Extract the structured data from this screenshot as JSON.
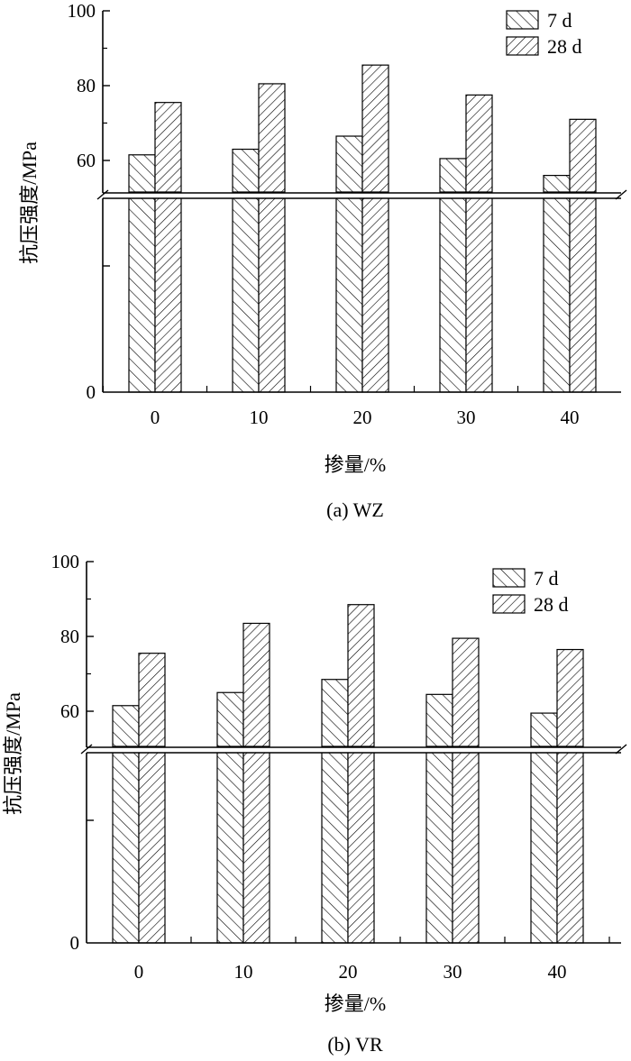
{
  "chart_data": [
    {
      "type": "bar",
      "caption": "(a) WZ",
      "categories": [
        "0",
        "10",
        "20",
        "30",
        "40"
      ],
      "series": [
        {
          "name": "7 d",
          "values": [
            61.5,
            63,
            66.5,
            60.5,
            56
          ]
        },
        {
          "name": "28 d",
          "values": [
            75.5,
            80.5,
            85.5,
            77.5,
            71
          ]
        }
      ],
      "xlabel": "掺量/%",
      "ylabel": "抗压强度/MPa",
      "ylim": [
        0,
        100
      ],
      "axis_break": true,
      "yticks_lower": [
        "0"
      ],
      "yticks_upper": [
        "60",
        "80",
        "100"
      ],
      "legend_position": "top-right",
      "grid": false
    },
    {
      "type": "bar",
      "caption": "(b) VR",
      "categories": [
        "0",
        "10",
        "20",
        "30",
        "40"
      ],
      "series": [
        {
          "name": "7 d",
          "values": [
            61.5,
            65,
            68.5,
            64.5,
            59.5
          ]
        },
        {
          "name": "28 d",
          "values": [
            75.5,
            83.5,
            88.5,
            79.5,
            76.5
          ]
        }
      ],
      "xlabel": "掺量/%",
      "ylabel": "抗压强度/MPa",
      "ylim": [
        0,
        100
      ],
      "axis_break": true,
      "yticks_lower": [
        "0"
      ],
      "yticks_upper": [
        "60",
        "80",
        "100"
      ],
      "legend_position": "top-right",
      "grid": false
    }
  ]
}
